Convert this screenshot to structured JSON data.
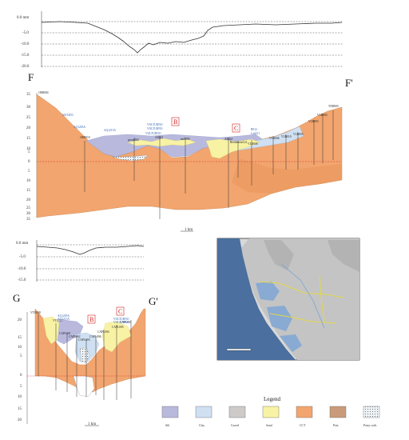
{
  "top_profile": {
    "ticks": [
      "0.0 mm",
      "-5.0",
      "-10.0",
      "-15.0",
      "-20.0"
    ]
  },
  "section_f": {
    "label_left": "F",
    "label_right": "F'",
    "ticks": [
      "35",
      "30",
      "25",
      "20",
      "15",
      "10",
      "5",
      "0",
      "5",
      "10",
      "15",
      "20",
      "25",
      "30",
      "35"
    ],
    "wells_black": [
      "1808004",
      "1808010",
      "groux002",
      "AS022",
      "sm0008",
      "AS024",
      "Ressement114",
      "VLB008",
      "VLB006",
      "VLB010",
      "VLB005",
      "VLB003",
      "VLB004",
      "TND005"
    ],
    "wells_blue": [
      "NOT2D3",
      "AQ1205A",
      "AQ1215A",
      "VOLTURNO",
      "VOLTURNO",
      "VOLTURNO",
      "B912",
      "Lo6211"
    ],
    "box_b": "B",
    "box_c": "C",
    "scale": "1 km"
  },
  "mid_profile": {
    "ticks": [
      "0.0 mm",
      "-5.0",
      "-10.0",
      "-15.0"
    ]
  },
  "section_g": {
    "label_left": "G",
    "label_right": "G'",
    "ticks": [
      "20",
      "15",
      "10",
      "5",
      "0",
      "5",
      "10",
      "15",
      "20"
    ],
    "wells_black": [
      "VTU008",
      "VTU007",
      "CAPL001",
      "CAPL002",
      "CAPL003",
      "CAPL006",
      "CAPL004",
      "CAPL005",
      "CAPL001"
    ],
    "wells_blue": [
      "AQ1205A",
      "AQ1215A",
      "VOLTURNO",
      "VOLTURNO"
    ],
    "box_b": "B",
    "box_c": "C",
    "scale": "1 km"
  },
  "legend": {
    "title": "Legend",
    "items": [
      {
        "label": "Silt",
        "color": "#b8b9dd"
      },
      {
        "label": "Clay",
        "color": "#cfe0f2"
      },
      {
        "label": "Gravel",
        "color": "#cfcaca"
      },
      {
        "label": "Sand",
        "color": "#f8f2a4"
      },
      {
        "label": "CCT",
        "color": "#f2a56e"
      },
      {
        "label": "Peat",
        "color": "#c99a7a"
      },
      {
        "label": "Peaty soils",
        "color": "#ffffff"
      }
    ]
  }
}
